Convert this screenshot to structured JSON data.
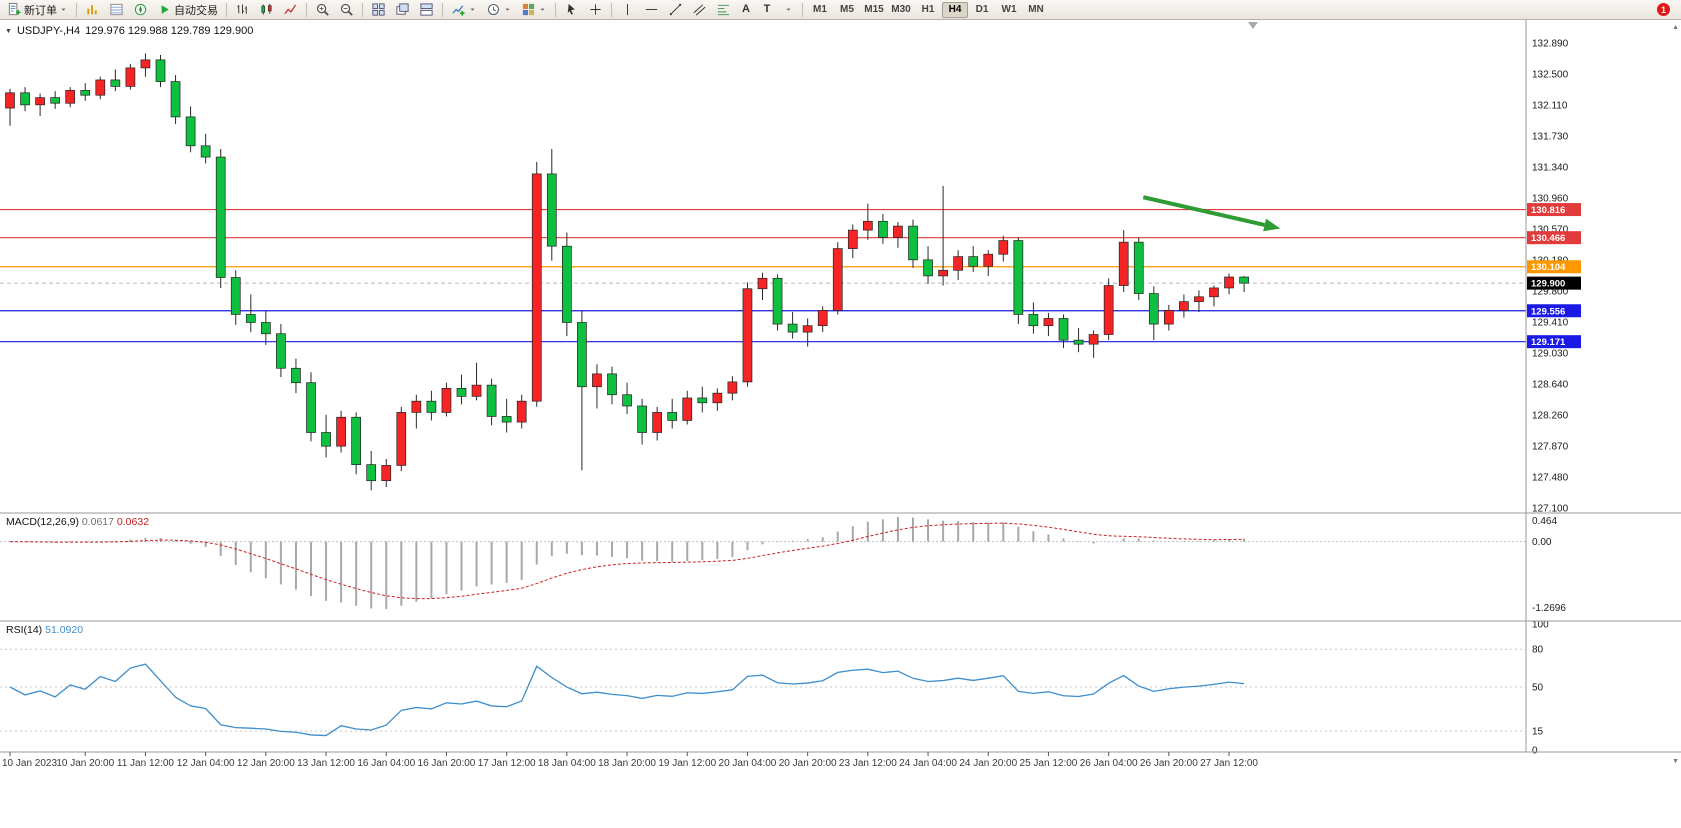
{
  "toolbar": {
    "new_order_label": "新订单",
    "autotrading_label": "自动交易",
    "text_tool_label": "A",
    "textbox_tool_label": "T",
    "timeframes": [
      "M1",
      "M5",
      "M15",
      "M30",
      "H1",
      "H4",
      "D1",
      "W1",
      "MN"
    ],
    "active_timeframe": "H4",
    "notification_badge": "1"
  },
  "chart": {
    "collapse_icon": "▼",
    "title_symbol": "USDJPY-,H4",
    "title_ohlc": "129.976 129.988 129.789 129.900"
  },
  "chart_data": {
    "type": "candlestick",
    "symbol": "USDJPY-",
    "period": "H4",
    "up_color": "#f52525",
    "down_color": "#0fbf3f",
    "wick_color": "#2a2a2a",
    "price_axis": {
      "max": 132.89,
      "min": 127.1,
      "labels": [
        "132.890",
        "132.500",
        "132.110",
        "131.730",
        "131.340",
        "130.960",
        "130.570",
        "130.180",
        "129.800",
        "129.410",
        "129.030",
        "128.640",
        "128.260",
        "127.870",
        "127.480",
        "127.100"
      ]
    },
    "time_labels": [
      "10 Jan 2023",
      "10 Jan 20:00",
      "11 Jan 12:00",
      "12 Jan 04:00",
      "12 Jan 20:00",
      "13 Jan 12:00",
      "16 Jan 04:00",
      "16 Jan 20:00",
      "17 Jan 12:00",
      "18 Jan 04:00",
      "18 Jan 20:00",
      "19 Jan 12:00",
      "20 Jan 04:00",
      "20 Jan 20:00",
      "23 Jan 12:00",
      "24 Jan 04:00",
      "24 Jan 20:00",
      "25 Jan 12:00",
      "26 Jan 04:00",
      "26 Jan 20:00",
      "27 Jan 12:00"
    ],
    "time_label_indices": [
      0,
      5,
      9,
      13,
      17,
      21,
      25,
      29,
      33,
      37,
      41,
      45,
      49,
      53,
      57,
      61,
      65,
      69,
      73,
      77,
      81
    ],
    "candles": [
      [
        132.08,
        132.32,
        131.86,
        132.27
      ],
      [
        132.27,
        132.34,
        132.04,
        132.12
      ],
      [
        132.12,
        132.26,
        131.98,
        132.21
      ],
      [
        132.21,
        132.29,
        132.07,
        132.14
      ],
      [
        132.14,
        132.34,
        132.09,
        132.3
      ],
      [
        132.3,
        132.39,
        132.17,
        132.24
      ],
      [
        132.24,
        132.47,
        132.19,
        132.43
      ],
      [
        132.43,
        132.56,
        132.29,
        132.35
      ],
      [
        132.35,
        132.63,
        132.31,
        132.58
      ],
      [
        132.58,
        132.76,
        132.47,
        132.68
      ],
      [
        132.68,
        132.74,
        132.34,
        132.41
      ],
      [
        132.41,
        132.49,
        131.88,
        131.97
      ],
      [
        131.97,
        132.1,
        131.53,
        131.61
      ],
      [
        131.61,
        131.76,
        131.39,
        131.47
      ],
      [
        131.47,
        131.57,
        129.84,
        129.97
      ],
      [
        129.97,
        130.06,
        129.38,
        129.51
      ],
      [
        129.51,
        129.76,
        129.29,
        129.41
      ],
      [
        129.41,
        129.56,
        129.13,
        129.27
      ],
      [
        129.27,
        129.39,
        128.73,
        128.84
      ],
      [
        128.84,
        128.96,
        128.53,
        128.66
      ],
      [
        128.66,
        128.79,
        127.93,
        128.04
      ],
      [
        128.04,
        128.26,
        127.73,
        127.87
      ],
      [
        127.87,
        128.31,
        127.79,
        128.23
      ],
      [
        128.23,
        128.29,
        127.52,
        127.64
      ],
      [
        127.64,
        127.81,
        127.32,
        127.44
      ],
      [
        127.44,
        127.71,
        127.36,
        127.63
      ],
      [
        127.63,
        128.36,
        127.56,
        128.29
      ],
      [
        128.29,
        128.51,
        128.09,
        128.43
      ],
      [
        128.43,
        128.56,
        128.19,
        128.29
      ],
      [
        128.29,
        128.66,
        128.24,
        128.59
      ],
      [
        128.59,
        128.76,
        128.39,
        128.49
      ],
      [
        128.49,
        128.91,
        128.44,
        128.63
      ],
      [
        128.63,
        128.71,
        128.13,
        128.24
      ],
      [
        128.24,
        128.46,
        128.04,
        128.17
      ],
      [
        128.17,
        128.51,
        128.09,
        128.43
      ],
      [
        128.43,
        131.41,
        128.36,
        131.26
      ],
      [
        131.26,
        131.57,
        130.18,
        130.36
      ],
      [
        130.36,
        130.53,
        129.24,
        129.41
      ],
      [
        129.41,
        129.56,
        127.57,
        128.61
      ],
      [
        128.61,
        128.89,
        128.34,
        128.77
      ],
      [
        128.77,
        128.86,
        128.39,
        128.51
      ],
      [
        128.51,
        128.66,
        128.27,
        128.37
      ],
      [
        128.37,
        128.46,
        127.89,
        128.04
      ],
      [
        128.04,
        128.36,
        127.94,
        128.29
      ],
      [
        128.29,
        128.46,
        128.09,
        128.19
      ],
      [
        128.19,
        128.56,
        128.14,
        128.47
      ],
      [
        128.47,
        128.61,
        128.29,
        128.41
      ],
      [
        128.41,
        128.59,
        128.31,
        128.53
      ],
      [
        128.53,
        128.74,
        128.44,
        128.67
      ],
      [
        128.67,
        129.91,
        128.61,
        129.83
      ],
      [
        129.83,
        130.03,
        129.69,
        129.96
      ],
      [
        129.96,
        130.01,
        129.31,
        129.39
      ],
      [
        129.39,
        129.54,
        129.21,
        129.29
      ],
      [
        129.29,
        129.46,
        129.11,
        129.37
      ],
      [
        129.37,
        129.61,
        129.29,
        129.56
      ],
      [
        129.56,
        130.41,
        129.51,
        130.33
      ],
      [
        130.33,
        130.63,
        130.21,
        130.56
      ],
      [
        130.56,
        130.89,
        130.44,
        130.67
      ],
      [
        130.67,
        130.76,
        130.39,
        130.47
      ],
      [
        130.47,
        130.66,
        130.34,
        130.61
      ],
      [
        130.61,
        130.69,
        130.09,
        130.19
      ],
      [
        130.19,
        130.36,
        129.89,
        129.99
      ],
      [
        129.99,
        131.11,
        129.87,
        130.06
      ],
      [
        130.06,
        130.31,
        129.94,
        130.23
      ],
      [
        130.23,
        130.36,
        130.04,
        130.11
      ],
      [
        130.11,
        130.31,
        129.99,
        130.26
      ],
      [
        130.26,
        130.49,
        130.17,
        130.43
      ],
      [
        130.43,
        130.47,
        129.39,
        129.51
      ],
      [
        129.51,
        129.66,
        129.27,
        129.37
      ],
      [
        129.37,
        129.53,
        129.24,
        129.46
      ],
      [
        129.46,
        129.51,
        129.09,
        129.19
      ],
      [
        129.19,
        129.34,
        129.04,
        129.14
      ],
      [
        129.14,
        129.31,
        128.97,
        129.26
      ],
      [
        129.26,
        129.96,
        129.19,
        129.87
      ],
      [
        129.87,
        130.56,
        129.79,
        130.41
      ],
      [
        130.41,
        130.47,
        129.69,
        129.77
      ],
      [
        129.77,
        129.86,
        129.19,
        129.39
      ],
      [
        129.39,
        129.63,
        129.31,
        129.56
      ],
      [
        129.56,
        129.76,
        129.47,
        129.67
      ],
      [
        129.67,
        129.81,
        129.54,
        129.73
      ],
      [
        129.73,
        129.87,
        129.61,
        129.84
      ],
      [
        129.84,
        130.02,
        129.76,
        129.976
      ],
      [
        129.976,
        129.988,
        129.789,
        129.9
      ]
    ],
    "hlines": [
      {
        "price": 130.816,
        "label": "130.816",
        "color": "#e23b3b",
        "tag_bg": "#e23b3b"
      },
      {
        "price": 130.466,
        "label": "130.466",
        "color": "#e23b3b",
        "tag_bg": "#e23b3b"
      },
      {
        "price": 130.104,
        "label": "130.104",
        "color": "#ff9800",
        "tag_bg": "#ff9800"
      },
      {
        "price": 129.556,
        "label": "129.556",
        "color": "#1a1ae6",
        "tag_bg": "#1a1ae6"
      },
      {
        "price": 129.171,
        "label": "129.171",
        "color": "#1a1ae6",
        "tag_bg": "#1a1ae6"
      }
    ],
    "bid_line": {
      "price": 129.9,
      "label": "129.900",
      "color": "#b9b9b9",
      "tag_bg": "#000000"
    },
    "trend_arrow": {
      "color": "#2e9b33",
      "from": {
        "index": 75.3,
        "price": 130.97
      },
      "to": {
        "index": 84.4,
        "price": 130.58
      }
    },
    "macd": {
      "label": "MACD(12,26,9)",
      "value_main": "0.0617",
      "value_signal": "0.0632",
      "params": {
        "fast": 12,
        "slow": 26,
        "signal": 9
      },
      "axis_labels": [
        "0.464",
        "0.00",
        "-1.2696"
      ],
      "range_max": 0.464,
      "range_min": -1.2696,
      "histogram_color": "#a8a8a8",
      "signal_color": "#d02020"
    },
    "rsi": {
      "label": "RSI(14)",
      "value": "51.0920",
      "period": 14,
      "axis_labels": [
        "100",
        "80",
        "50",
        "15",
        "0"
      ],
      "levels": [
        80,
        50,
        15
      ],
      "line_color": "#3e8ecb"
    }
  }
}
